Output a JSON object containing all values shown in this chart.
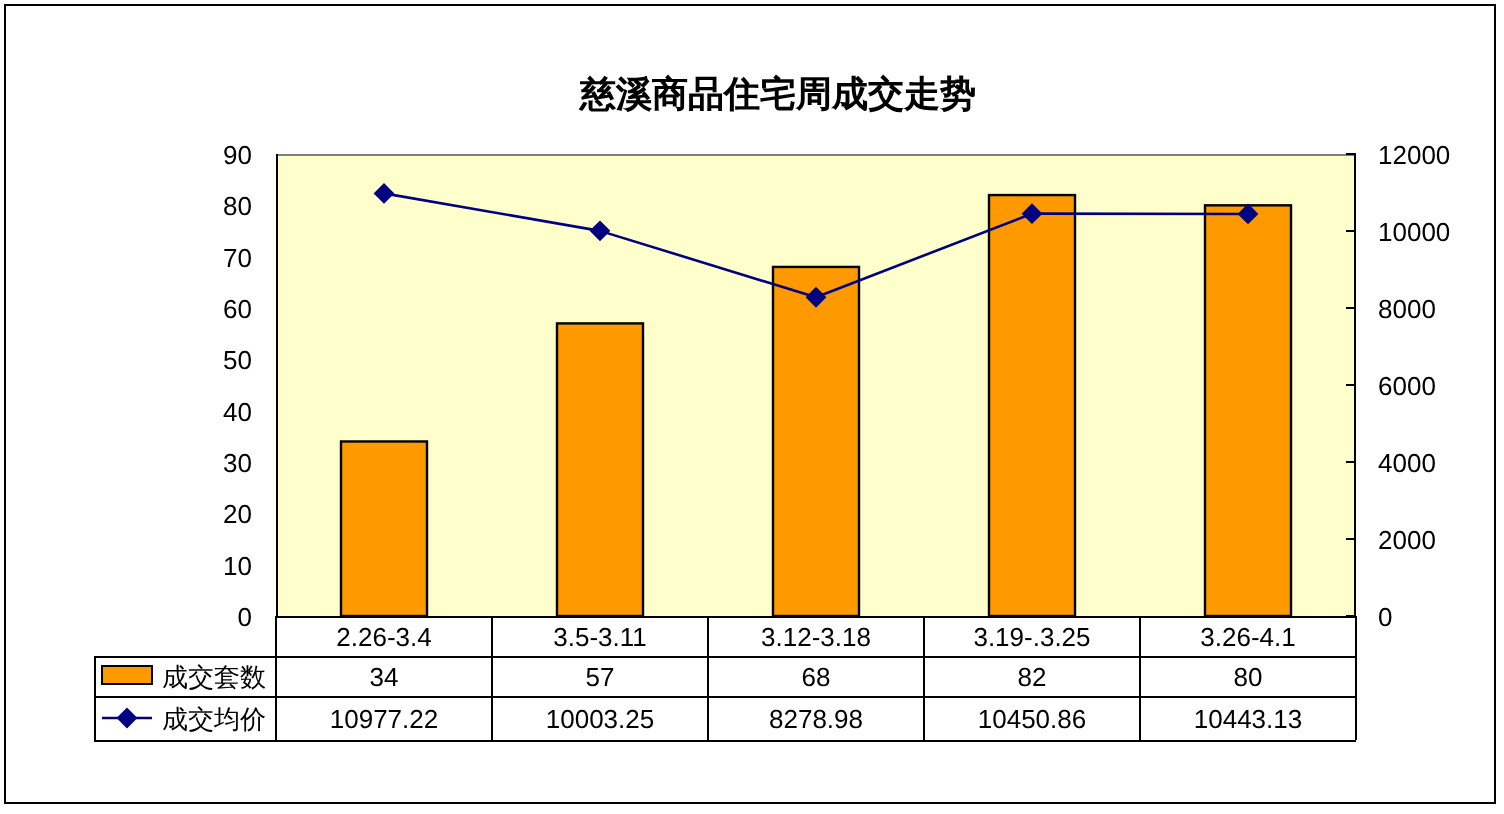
{
  "chart_data": {
    "type": "bar",
    "title": "慈溪商品住宅周成交走势",
    "categories": [
      "2.26-3.4",
      "3.5-3.11",
      "3.12-3.18",
      "3.19-.3.25",
      "3.26-4.1"
    ],
    "series": [
      {
        "name": "成交套数",
        "color": "#ff9900",
        "values": [
          34,
          57,
          68,
          82,
          80
        ]
      },
      {
        "name": "成交均价",
        "type": "line",
        "axis": "y2",
        "color": "#000080",
        "values": [
          10977.22,
          10003.25,
          8278.98,
          10450.86,
          10443.13
        ]
      }
    ],
    "ylim": [
      0,
      90
    ],
    "yticks": [
      0,
      10,
      20,
      30,
      40,
      50,
      60,
      70,
      80,
      90
    ],
    "y2lim": [
      0,
      12000
    ],
    "y2ticks": [
      0,
      2000,
      4000,
      6000,
      8000,
      10000,
      12000
    ],
    "data_labels": true,
    "legend": "bottom left",
    "marker": "diamond",
    "line_style": "solid"
  }
}
